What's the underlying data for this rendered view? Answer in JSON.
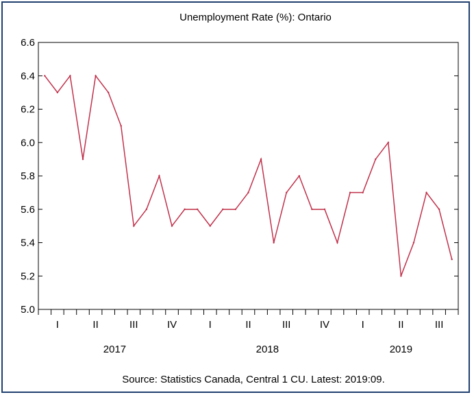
{
  "chart_data": {
    "type": "line",
    "title": "Unemployment Rate (%): Ontario",
    "source": "Source: Statistics Canada, Central 1 CU. Latest: 2019:09.",
    "line_color": "#c0304a",
    "grid": false,
    "ylim": [
      5.0,
      6.6
    ],
    "yticks": [
      "5.0",
      "5.2",
      "5.4",
      "5.6",
      "5.8",
      "6.0",
      "6.2",
      "6.4",
      "6.6"
    ],
    "quarter_labels": [
      "I",
      "II",
      "III",
      "IV",
      "I",
      "II",
      "III",
      "IV",
      "I",
      "II",
      "III"
    ],
    "year_labels": [
      "2017",
      "2018",
      "2019"
    ],
    "x": [
      "2017:01",
      "2017:02",
      "2017:03",
      "2017:04",
      "2017:05",
      "2017:06",
      "2017:07",
      "2017:08",
      "2017:09",
      "2017:10",
      "2017:11",
      "2017:12",
      "2018:01",
      "2018:02",
      "2018:03",
      "2018:04",
      "2018:05",
      "2018:06",
      "2018:07",
      "2018:08",
      "2018:09",
      "2018:10",
      "2018:11",
      "2018:12",
      "2019:01",
      "2019:02",
      "2019:03",
      "2019:04",
      "2019:05",
      "2019:06",
      "2019:07",
      "2019:08",
      "2019:09"
    ],
    "series": [
      {
        "values": [
          6.4,
          6.3,
          6.4,
          5.9,
          6.4,
          6.3,
          6.1,
          5.5,
          5.6,
          5.8,
          5.5,
          5.6,
          5.6,
          5.5,
          5.6,
          5.6,
          5.7,
          5.9,
          5.4,
          5.7,
          5.8,
          5.6,
          5.6,
          5.4,
          5.7,
          5.7,
          5.9,
          6.0,
          5.2,
          5.4,
          5.7,
          5.6,
          5.3
        ]
      }
    ]
  }
}
